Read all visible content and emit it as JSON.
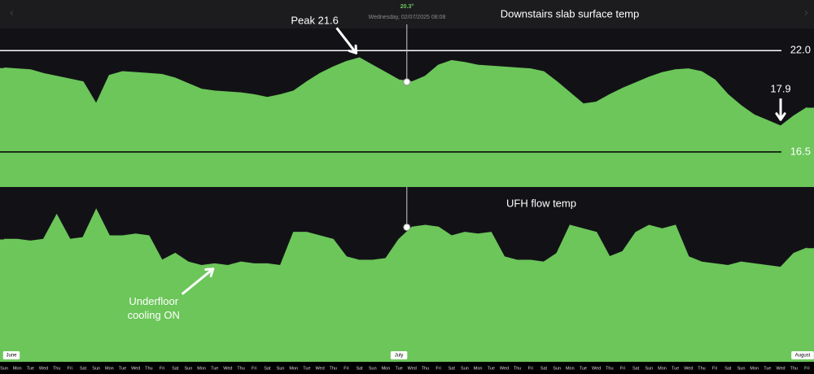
{
  "chart_data": [
    {
      "type": "area",
      "title": "Downstairs slab surface temp",
      "color": "#6cc65a",
      "ylim": [
        14.6,
        23.2
      ],
      "yticks": [
        {
          "value": 22,
          "label": "22.0",
          "color": "#ffffff"
        },
        {
          "value": 16.5,
          "label": "16.5",
          "color": "#000000"
        }
      ],
      "values": [
        21.05,
        21.0,
        20.95,
        20.75,
        20.6,
        20.45,
        20.3,
        19.1,
        20.65,
        20.85,
        20.8,
        20.75,
        20.7,
        20.5,
        20.2,
        19.9,
        19.8,
        19.75,
        19.7,
        19.6,
        19.45,
        19.6,
        19.8,
        20.3,
        20.75,
        21.1,
        21.4,
        21.6,
        21.2,
        20.8,
        20.4,
        20.3,
        20.6,
        21.2,
        21.45,
        21.35,
        21.2,
        21.15,
        21.1,
        21.05,
        21.0,
        20.85,
        20.3,
        19.7,
        19.1,
        19.2,
        19.6,
        19.95,
        20.25,
        20.55,
        20.8,
        20.95,
        21.0,
        20.85,
        20.4,
        19.6,
        19.0,
        18.5,
        18.2,
        17.9,
        18.45,
        18.9
      ],
      "tooltip": {
        "x": 30.6,
        "value": 20.3,
        "label": "20.3°",
        "date": "Wednesday, 02/07/2025 08:08"
      },
      "annotations": [
        {
          "text": "Peak 21.6",
          "x": 27,
          "y": 21.6
        },
        {
          "text": "17.9",
          "x": 59,
          "y": 17.9
        }
      ]
    },
    {
      "type": "area",
      "title": "UFH flow temp",
      "color": "#6cc65a",
      "ylim": [
        0,
        100
      ],
      "values": [
        70,
        70,
        69,
        70,
        84,
        70,
        71,
        87,
        72,
        72,
        73,
        72,
        58,
        62,
        57,
        55,
        56,
        55,
        57,
        56,
        56,
        55,
        74,
        74,
        72,
        70,
        60,
        58,
        58,
        59,
        70,
        77,
        78,
        77,
        72,
        74,
        73,
        74,
        60,
        58,
        58,
        57,
        62,
        78,
        76,
        74,
        60,
        63,
        74,
        78,
        76,
        78,
        60,
        57,
        56,
        55,
        57,
        56,
        55,
        54,
        62,
        65
      ],
      "tooltip": {
        "x": 30.6,
        "value": 77
      },
      "annotations": [
        {
          "text": "Underfloor cooling ON",
          "x": 16,
          "y": 55
        }
      ],
      "categories": [
        "Sun",
        "Mon",
        "Tue",
        "Wed",
        "Thu",
        "Fri",
        "Sat",
        "Sun",
        "Mon",
        "Tue",
        "Wed",
        "Thu",
        "Fri",
        "Sat",
        "Sun",
        "Mon",
        "Tue",
        "Wed",
        "Thu",
        "Fri",
        "Sat",
        "Sun",
        "Mon",
        "Tue",
        "Wed",
        "Thu",
        "Fri",
        "Sat",
        "Sun",
        "Mon",
        "Tue",
        "Wed",
        "Thu",
        "Fri",
        "Sat",
        "Sun",
        "Mon",
        "Tue",
        "Wed",
        "Thu",
        "Fri",
        "Sat",
        "Sun",
        "Mon",
        "Tue",
        "Wed",
        "Thu",
        "Fri",
        "Sat",
        "Sun",
        "Mon",
        "Tue",
        "Wed",
        "Thu",
        "Fri",
        "Sat",
        "Sun",
        "Mon",
        "Tue",
        "Wed",
        "Thu",
        "Fri"
      ],
      "xticks": [
        {
          "value": 0,
          "label": "June"
        },
        {
          "value": 30,
          "label": "July"
        },
        {
          "value": 61,
          "label": "August"
        }
      ]
    }
  ]
}
